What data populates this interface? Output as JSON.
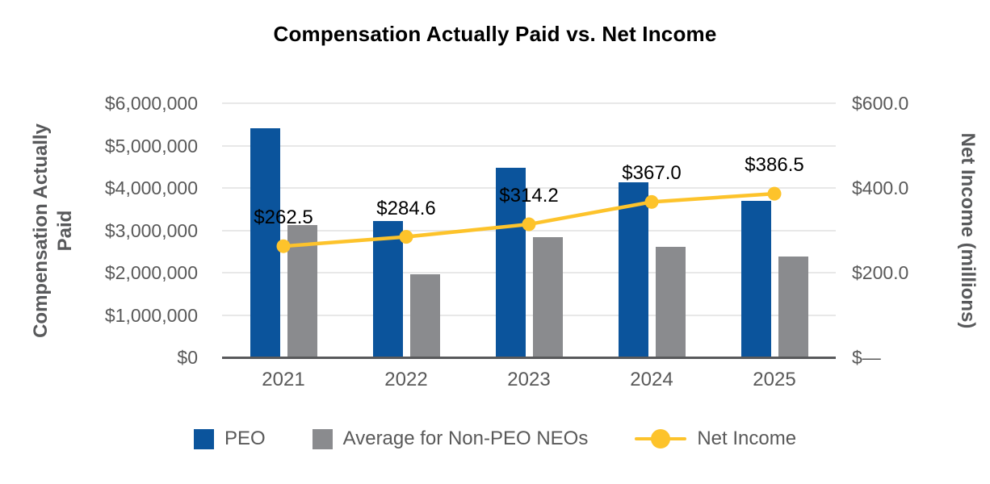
{
  "title": "Compensation Actually Paid vs. Net Income",
  "colors": {
    "peo_bar": "#0b549c",
    "neo_bar": "#8a8b8e",
    "net_income_line": "#fdc32b",
    "gridline": "#e8e8e8",
    "axis_line": "#58595b",
    "tick_text": "#595959",
    "data_label_text": "#000000"
  },
  "chart_data": {
    "type": "combo",
    "title": "Compensation Actually Paid vs. Net Income",
    "categories": [
      "2021",
      "2022",
      "2023",
      "2024",
      "2025"
    ],
    "series": [
      {
        "name": "PEO",
        "type": "bar",
        "axis": "left",
        "color": "#0b549c",
        "values": [
          5410000,
          3220000,
          4480000,
          4130000,
          3700000
        ]
      },
      {
        "name": "Average for Non-PEO NEOs",
        "type": "bar",
        "axis": "left",
        "color": "#8a8b8e",
        "values": [
          3120000,
          1970000,
          2830000,
          2600000,
          2390000
        ]
      },
      {
        "name": "Net Income",
        "type": "line",
        "axis": "right",
        "color": "#fdc32b",
        "values": [
          262.5,
          284.6,
          314.2,
          367.0,
          386.5
        ],
        "data_labels": [
          "$262.5",
          "$284.6",
          "$314.2",
          "$367.0",
          "$386.5"
        ]
      }
    ],
    "left_axis": {
      "label": "Compensation Actually\nPaid",
      "range": [
        0,
        6000000
      ],
      "ticks": [
        {
          "label": "$6,000,000",
          "value": 6000000
        },
        {
          "label": "$5,000,000",
          "value": 5000000
        },
        {
          "label": "$4,000,000",
          "value": 4000000
        },
        {
          "label": "$3,000,000",
          "value": 3000000
        },
        {
          "label": "$2,000,000",
          "value": 2000000
        },
        {
          "label": "$1,000,000",
          "value": 1000000
        },
        {
          "label": "$0",
          "value": 0
        }
      ]
    },
    "right_axis": {
      "label": "Net Income (millions)",
      "range": [
        0,
        600
      ],
      "ticks": [
        {
          "label": "$600.0",
          "value": 600
        },
        {
          "label": "$400.0",
          "value": 400
        },
        {
          "label": "$200.0",
          "value": 200
        },
        {
          "label": "$—",
          "value": 0
        }
      ]
    },
    "grid": true,
    "legend_position": "bottom"
  },
  "legend": {
    "items": [
      {
        "label": "PEO",
        "swatch": "square",
        "color": "#0b549c"
      },
      {
        "label": "Average for Non-PEO NEOs",
        "swatch": "square",
        "color": "#8a8b8e"
      },
      {
        "label": "Net Income",
        "swatch": "line-marker",
        "color": "#fdc32b"
      }
    ]
  }
}
